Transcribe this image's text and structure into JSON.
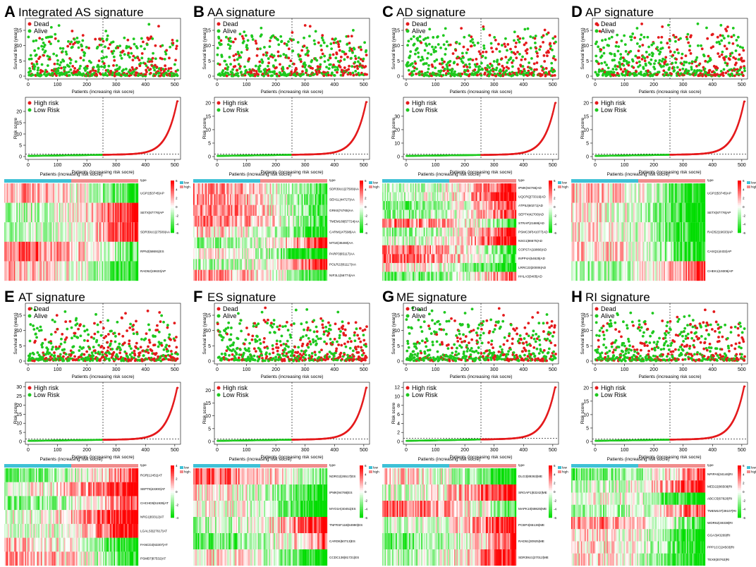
{
  "figure": {
    "x_axis_label": "Patients (increasing risk socre)",
    "survival_ylabel": "Survival time (years)",
    "risk_ylabel": "Risk score",
    "survival_legend": [
      "Dead",
      "Alive"
    ],
    "risk_legend": [
      "High risk",
      "Low Risk"
    ],
    "heat_legend_title": "type",
    "heat_legend_types": [
      "low",
      "high"
    ],
    "colors": {
      "dead": "#e41a1c",
      "alive": "#1ec81e",
      "high": "#e41a1c",
      "low": "#1ec81e",
      "heat_high": "#ff0000",
      "heat_mid": "#ffffff",
      "heat_low": "#00dd00",
      "type_low": "#3ec1d6",
      "type_high": "#f08c8c"
    }
  },
  "chart_data": [
    {
      "letter": "A",
      "title": "Integrated AS signature",
      "type": "scatter",
      "n": 510,
      "cutoff": 255,
      "survival": {
        "xlim": [
          0,
          510
        ],
        "ylim": [
          0,
          18
        ],
        "xticks": [
          0,
          100,
          200,
          300,
          400,
          500
        ],
        "yticks": [
          0,
          5,
          10,
          15
        ]
      },
      "risk": {
        "xlim": [
          0,
          510
        ],
        "ylim": [
          0,
          25
        ],
        "xticks": [
          0,
          100,
          200,
          300,
          400,
          500
        ],
        "yticks": [
          0,
          5,
          10,
          15,
          20
        ],
        "max": 24.5
      },
      "heat_scale": [
        6,
        4,
        2,
        0,
        -2,
        -4,
        -6
      ],
      "genes": [
        "UGP2|53745|AP",
        "SETX|87776|AP",
        "SDR39U1|27509|AA",
        "RPN2|58691|ES",
        "RAD52|19633|AP"
      ]
    },
    {
      "letter": "B",
      "title": "AA signature",
      "type": "scatter",
      "n": 510,
      "cutoff": 255,
      "survival": {
        "xlim": [
          0,
          510
        ],
        "ylim": [
          0,
          18
        ],
        "xticks": [
          0,
          100,
          200,
          300,
          400,
          500
        ],
        "yticks": [
          0,
          5,
          10,
          15
        ]
      },
      "risk": {
        "xlim": [
          0,
          510
        ],
        "ylim": [
          0,
          21
        ],
        "xticks": [
          0,
          100,
          200,
          300,
          400,
          500
        ],
        "yticks": [
          0,
          5,
          10,
          15,
          20
        ],
        "max": 20.3
      },
      "heat_scale": [
        6,
        4,
        2,
        0,
        -2,
        -4,
        -6
      ],
      "genes": [
        "SDR39U1|27509|AA",
        "SEH1L|44727|AA",
        "GRK6|74765|AA",
        "TMEM189|57724|AA",
        "CARM1|47598|AA",
        "MT1E|36460|AA",
        "PARP3|65117|AA",
        "POLR2J|81117|AA",
        "NIF3L1|56774|AA"
      ]
    },
    {
      "letter": "C",
      "title": "AD signature",
      "type": "scatter",
      "n": 510,
      "cutoff": 255,
      "survival": {
        "xlim": [
          0,
          510
        ],
        "ylim": [
          0,
          18
        ],
        "xticks": [
          0,
          100,
          200,
          300,
          400,
          500
        ],
        "yticks": [
          0,
          5,
          10,
          15
        ]
      },
      "risk": {
        "xlim": [
          0,
          510
        ],
        "ylim": [
          0,
          42
        ],
        "xticks": [
          0,
          100,
          200,
          300,
          400,
          500
        ],
        "yticks": [
          0,
          10,
          20,
          30
        ],
        "max": 40
      },
      "heat_scale": [
        6,
        4,
        2,
        0,
        -2,
        -4,
        -6
      ],
      "genes": [
        "IPMK|94766|AD",
        "UQCRQ|73319|AD",
        "ATP5J|60271|AD",
        "SEPT4|42700|AD",
        "STRAP|21686|AD",
        "PSMC3IP|41077|AD",
        "NSG1|86675|AD",
        "COPS7A|19866|AD",
        "INPP4A|54625|AD",
        "LRRC23|20006|AD",
        "HHLA3|3405|AD"
      ]
    },
    {
      "letter": "D",
      "title": "AP signature",
      "type": "scatter",
      "n": 510,
      "cutoff": 255,
      "survival": {
        "xlim": [
          0,
          510
        ],
        "ylim": [
          0,
          18
        ],
        "xticks": [
          0,
          100,
          200,
          300,
          400,
          500
        ],
        "yticks": [
          0,
          5,
          10,
          15
        ]
      },
      "risk": {
        "xlim": [
          0,
          510
        ],
        "ylim": [
          0,
          21
        ],
        "xticks": [
          0,
          100,
          200,
          300,
          400,
          500
        ],
        "yticks": [
          0,
          5,
          10,
          15,
          20
        ],
        "max": 20.5
      },
      "heat_scale": [
        6,
        4,
        2,
        0,
        -2,
        -4,
        -6
      ],
      "genes": [
        "UGP2|53745|AP",
        "SETX|87776|AP",
        "RAD52|19633|AP",
        "CASQ1|4432|AP",
        "CHEK1|19306|AP"
      ]
    },
    {
      "letter": "E",
      "title": "AT signature",
      "type": "scatter",
      "n": 510,
      "cutoff": 255,
      "survival": {
        "xlim": [
          0,
          510
        ],
        "ylim": [
          0,
          18
        ],
        "xticks": [
          0,
          100,
          200,
          300,
          400,
          500
        ],
        "yticks": [
          0,
          5,
          10,
          15
        ]
      },
      "risk": {
        "xlim": [
          0,
          510
        ],
        "ylim": [
          0,
          31
        ],
        "xticks": [
          0,
          100,
          200,
          300,
          400,
          500
        ],
        "yticks": [
          0,
          5,
          10,
          15,
          20,
          25,
          30
        ],
        "max": 29.5
      },
      "heat_scale": [
        4,
        2,
        0,
        -2,
        -4
      ],
      "genes": [
        "RGR|12451|AT",
        "SEPT9|43300|AT",
        "CHCHD5|51935|AT",
        "NRG1|83312|AT",
        "LGALS3|27617|AT",
        "FANCD2|63307|AT",
        "PSMB7|87532|AT"
      ]
    },
    {
      "letter": "F",
      "title": "ES signature",
      "type": "scatter",
      "n": 510,
      "cutoff": 255,
      "survival": {
        "xlim": [
          0,
          510
        ],
        "ylim": [
          0,
          18
        ],
        "xticks": [
          0,
          100,
          200,
          300,
          400,
          500
        ],
        "yticks": [
          0,
          5,
          10,
          15
        ]
      },
      "risk": {
        "xlim": [
          0,
          510
        ],
        "ylim": [
          0,
          22
        ],
        "xticks": [
          0,
          100,
          200,
          300,
          400,
          500
        ],
        "yticks": [
          0,
          5,
          10,
          15,
          20
        ],
        "max": 21
      },
      "heat_scale": [
        6,
        4,
        2,
        0,
        -2,
        -4,
        -6
      ],
      "genes": [
        "NDRG2|26517|ES",
        "IPMK|94766|ES",
        "MYO1H|40451|ES",
        "TNFRSF11B|84990|ES",
        "CARD6|50713|ES",
        "CCDC136|81721|ES"
      ]
    },
    {
      "letter": "G",
      "title": "ME signature",
      "type": "scatter",
      "n": 510,
      "cutoff": 255,
      "survival": {
        "xlim": [
          0,
          510
        ],
        "ylim": [
          0,
          18
        ],
        "xticks": [
          0,
          100,
          200,
          300,
          400,
          500
        ],
        "yticks": [
          0,
          5,
          10,
          15
        ]
      },
      "risk": {
        "xlim": [
          0,
          510
        ],
        "ylim": [
          0,
          12.5
        ],
        "xticks": [
          0,
          100,
          200,
          300,
          400,
          500
        ],
        "yticks": [
          0,
          2,
          4,
          6,
          8,
          10,
          12
        ],
        "max": 12
      },
      "heat_scale": [
        6,
        4,
        2,
        0,
        -2,
        -4,
        -6
      ],
      "genes": [
        "DLG3|89363|ME",
        "SRGAP1|83242|ME",
        "MAPK10|69825|ME",
        "PCBP4|65136|ME",
        "RAD51|30925|ME",
        "SDR39U1|27012|ME"
      ]
    },
    {
      "letter": "H",
      "title": "RI signature",
      "type": "scatter",
      "n": 510,
      "cutoff": 255,
      "survival": {
        "xlim": [
          0,
          510
        ],
        "ylim": [
          0,
          18
        ],
        "xticks": [
          0,
          100,
          200,
          300,
          400,
          500
        ],
        "yticks": [
          0,
          5,
          10,
          15
        ]
      },
      "risk": {
        "xlim": [
          0,
          510
        ],
        "ylim": [
          0,
          21
        ],
        "xticks": [
          0,
          100,
          200,
          300,
          400,
          500
        ],
        "yticks": [
          0,
          5,
          10,
          15,
          20
        ],
        "max": 20.5
      },
      "heat_scale": [
        6,
        4,
        2,
        0,
        -2,
        -4,
        -6
      ],
      "genes": [
        "NPIPA5|34146|RI",
        "MED22|86509|RI",
        "ABCC5|67820|RI",
        "TMEM107|39107|RI",
        "WDR62|49338|RI",
        "GGA3|43269|RI",
        "PPP1CC|24503|RI",
        "TEX9|30763|RI"
      ]
    }
  ]
}
